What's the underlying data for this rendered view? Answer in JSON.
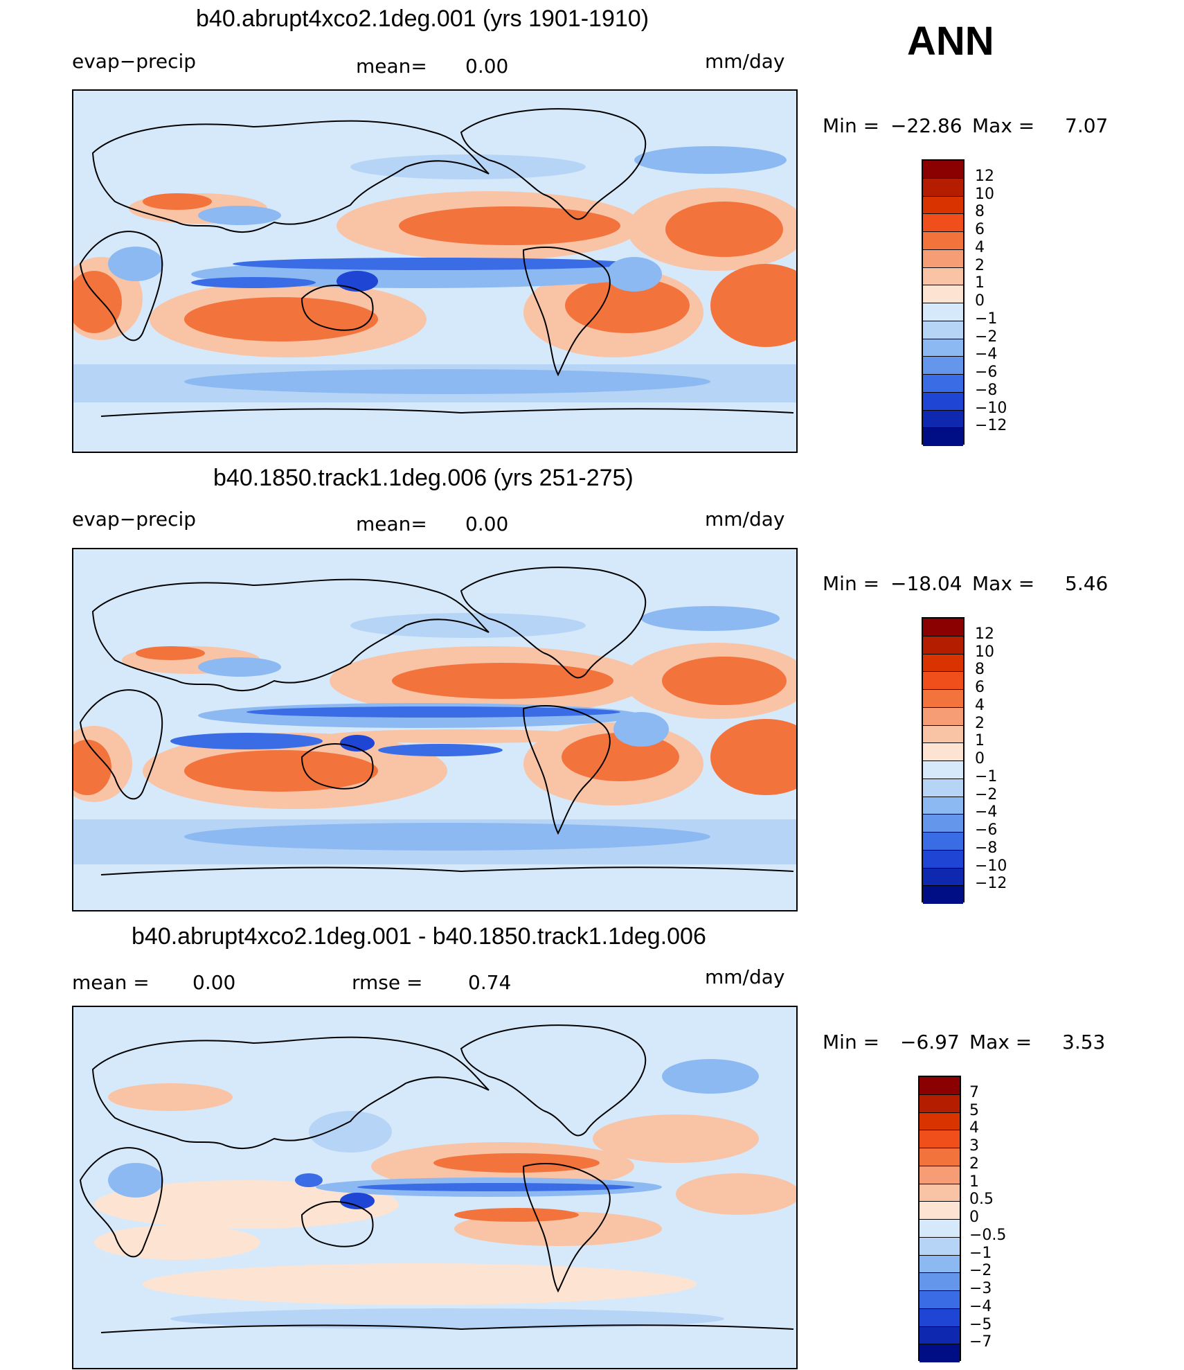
{
  "season_label": "ANN",
  "panels": [
    {
      "id": "top",
      "title": "b40.abrupt4xco2.1deg.001 (yrs 1901-1910)",
      "left_label": "evap−precip",
      "center_label": "mean=",
      "center_value": "0.00",
      "units": "mm/day",
      "min_label": "Min  =",
      "min_value": "−22.86",
      "max_label": "Max  =",
      "max_value": "7.07",
      "colorbar_ticks": [
        "12",
        "10",
        "8",
        "6",
        "4",
        "2",
        "1",
        "0",
        "−1",
        "−2",
        "−4",
        "−6",
        "−8",
        "−10",
        "−12"
      ],
      "colorbar_colors": [
        "#8b0000",
        "#b51d00",
        "#d93300",
        "#f04e1a",
        "#f3733d",
        "#f69d75",
        "#f9c3a6",
        "#fde4d2",
        "#d6e9fb",
        "#b6d4f6",
        "#8db9f2",
        "#6497ec",
        "#3a6ce6",
        "#1e45d4",
        "#0f28b0",
        "#000e85"
      ]
    },
    {
      "id": "middle",
      "title": "b40.1850.track1.1deg.006 (yrs 251-275)",
      "left_label": "evap−precip",
      "center_label": "mean=",
      "center_value": "0.00",
      "units": "mm/day",
      "min_label": "Min  =",
      "min_value": "−18.04",
      "max_label": "Max  =",
      "max_value": "5.46",
      "colorbar_ticks": [
        "12",
        "10",
        "8",
        "6",
        "4",
        "2",
        "1",
        "0",
        "−1",
        "−2",
        "−4",
        "−6",
        "−8",
        "−10",
        "−12"
      ],
      "colorbar_colors": [
        "#8b0000",
        "#b51d00",
        "#d93300",
        "#f04e1a",
        "#f3733d",
        "#f69d75",
        "#f9c3a6",
        "#fde4d2",
        "#d6e9fb",
        "#b6d4f6",
        "#8db9f2",
        "#6497ec",
        "#3a6ce6",
        "#1e45d4",
        "#0f28b0",
        "#000e85"
      ]
    },
    {
      "id": "bottom",
      "title": "b40.abrupt4xco2.1deg.001 - b40.1850.track1.1deg.006",
      "left_label": "mean  =",
      "left_value": "0.00",
      "center_label": "rmse  =",
      "center_value": "0.74",
      "units": "mm/day",
      "min_label": "Min  =",
      "min_value": "−6.97",
      "max_label": "Max  =",
      "max_value": "3.53",
      "colorbar_ticks": [
        "7",
        "5",
        "4",
        "3",
        "2",
        "1",
        "0.5",
        "0",
        "−0.5",
        "−1",
        "−2",
        "−3",
        "−4",
        "−5",
        "−7"
      ],
      "colorbar_colors": [
        "#8b0000",
        "#b51d00",
        "#d93300",
        "#f04e1a",
        "#f3733d",
        "#f69d75",
        "#f9c3a6",
        "#fde4d2",
        "#d6e9fb",
        "#b6d4f6",
        "#8db9f2",
        "#6497ec",
        "#3a6ce6",
        "#1e45d4",
        "#0f28b0",
        "#000e85"
      ]
    }
  ],
  "map_colors": {
    "background": "#d6e9fb",
    "land": "#d6e9fb",
    "pos_weak": "#fde4d2",
    "pos_mid": "#f9c3a6",
    "pos_strong": "#f3733d",
    "neg_weak": "#b6d4f6",
    "neg_mid": "#8db9f2",
    "neg_strong": "#3a6ce6",
    "neg_vstrong": "#1e45d4",
    "coast": "#000000"
  }
}
